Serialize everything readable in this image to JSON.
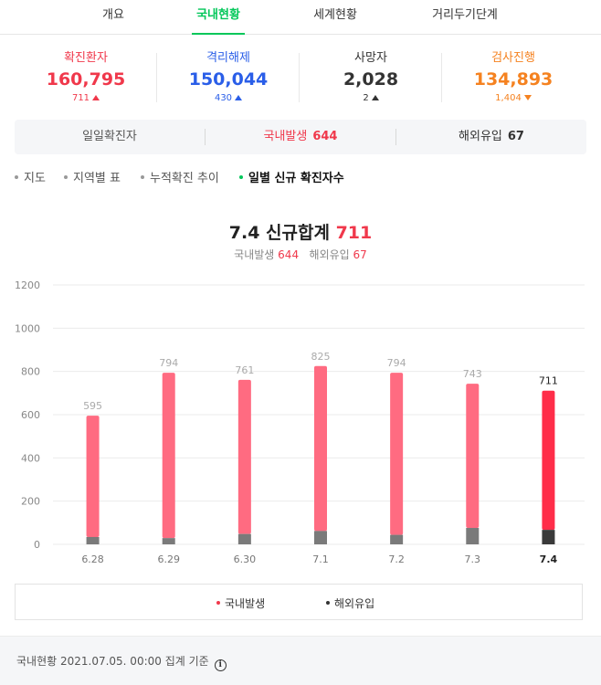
{
  "tabs": [
    "개요",
    "국내현황",
    "세계현황",
    "거리두기단계"
  ],
  "active_tab": 1,
  "stats": [
    {
      "label": "확진환자",
      "value": "160,795",
      "delta": "711",
      "dir": "up",
      "color": "#f0384b",
      "delta_color": "#f0384b"
    },
    {
      "label": "격리해제",
      "value": "150,044",
      "delta": "430",
      "dir": "up",
      "color": "#2a5ee8",
      "delta_color": "#2a5ee8"
    },
    {
      "label": "사망자",
      "value": "2,028",
      "delta": "2",
      "dir": "up",
      "color": "#333333",
      "delta_color": "#333333"
    },
    {
      "label": "검사진행",
      "value": "134,893",
      "delta": "1,404",
      "dir": "down",
      "color": "#f58220",
      "delta_color": "#f58220"
    }
  ],
  "daily": {
    "label": "일일확진자",
    "domestic_label": "국내발생",
    "domestic_value": "644",
    "overseas_label": "해외유입",
    "overseas_value": "67"
  },
  "subnav": [
    "지도",
    "지역별 표",
    "누적확진 추이",
    "일별 신규 확진자수"
  ],
  "subnav_active": 3,
  "chart": {
    "title_prefix": "7.4 신규합계",
    "title_value": "711",
    "sub_domestic_label": "국내발생",
    "sub_domestic_value": "644",
    "sub_overseas_label": "해외유입",
    "sub_overseas_value": "67"
  },
  "chart_data": {
    "type": "bar",
    "stacked": true,
    "categories": [
      "6.28",
      "6.29",
      "6.30",
      "7.1",
      "7.2",
      "7.3",
      "7.4"
    ],
    "totals": [
      595,
      794,
      761,
      825,
      794,
      743,
      711
    ],
    "series": [
      {
        "name": "국내발생",
        "values": [
          561,
          765,
          713,
          763,
          750,
          667,
          644
        ],
        "color": "#ff6b81"
      },
      {
        "name": "해외유입",
        "values": [
          34,
          29,
          48,
          62,
          44,
          76,
          67
        ],
        "color": "#7a7a7a"
      }
    ],
    "highlight_index": 6,
    "highlight_colors": {
      "domestic": "#ff2d49",
      "overseas": "#3a3a3a"
    },
    "y_ticks": [
      0,
      200,
      400,
      600,
      800,
      1000,
      1200
    ],
    "ylim": [
      0,
      1200
    ],
    "grid": true
  },
  "legend": {
    "domestic": "국내발생",
    "overseas": "해외유입"
  },
  "footer": {
    "text": "국내현황 2021.07.05. 00:00 집계 기준",
    "info_icon": "info-icon"
  }
}
